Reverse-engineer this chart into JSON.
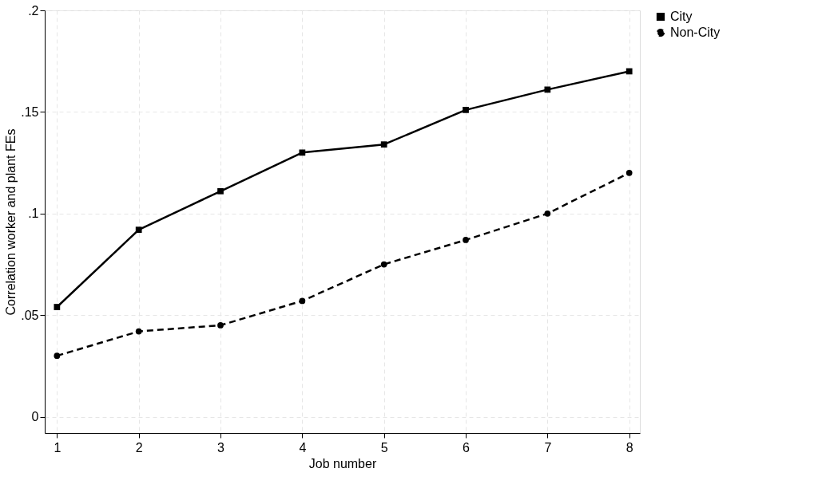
{
  "chart_data": {
    "type": "line",
    "xlabel": "Job number",
    "ylabel": "Correlation worker and plant FEs",
    "x": [
      1,
      2,
      3,
      4,
      5,
      6,
      7,
      8
    ],
    "xlim": [
      0.85,
      8.13
    ],
    "xticks": [
      1,
      2,
      3,
      4,
      5,
      6,
      7,
      8
    ],
    "ylim": [
      -0.008,
      0.2
    ],
    "yticks": [
      {
        "value": 0,
        "label": "0"
      },
      {
        "value": 0.05,
        "label": ".05"
      },
      {
        "value": 0.1,
        "label": ".1"
      },
      {
        "value": 0.15,
        "label": ".15"
      },
      {
        "value": 0.2,
        "label": ".2"
      }
    ],
    "grid": true,
    "legend": "right",
    "series": [
      {
        "name": "City",
        "color": "#000000",
        "marker": "square",
        "line_style": "solid",
        "values": [
          0.054,
          0.092,
          0.111,
          0.13,
          0.134,
          0.151,
          0.161,
          0.17
        ]
      },
      {
        "name": "Non-City",
        "color": "#000000",
        "marker": "circle",
        "line_style": "dashed",
        "values": [
          0.03,
          0.042,
          0.045,
          0.057,
          0.075,
          0.087,
          0.1,
          0.12
        ]
      }
    ]
  }
}
